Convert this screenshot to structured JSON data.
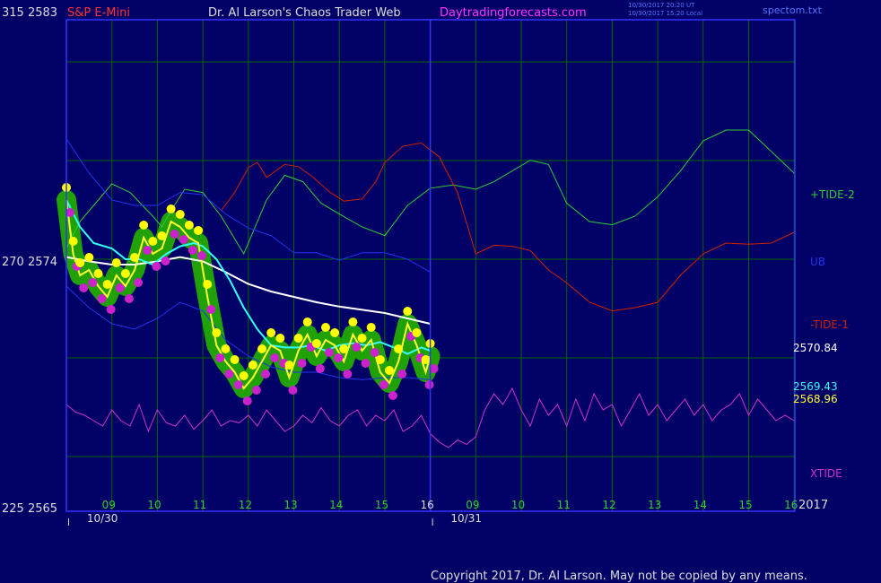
{
  "header": {
    "left_axis_top": "315  2583",
    "left_axis_mid": "270  2574",
    "left_axis_bottom": "225  2565",
    "symbol": "S&P E-Mini",
    "site_title": "Dr. Al Larson's Chaos Trader Web",
    "site_url": "Daytradingforecasts.com",
    "timestamp_1": "10/30/2017 20:20 UT",
    "timestamp_2": "10/30/2017 15:20 Local",
    "filename": "spectom.txt"
  },
  "footer": {
    "copyright": "Copyright 2017, Dr. Al Larson. May not be copied by any means.",
    "year": "2017"
  },
  "colors": {
    "background": "#000066",
    "axis": "#3333ff",
    "grid": "#006600",
    "tide_plus": "#33cc33",
    "tide_minus": "#cc2200",
    "ub": "#2233ee",
    "xtide": "#cc33cc",
    "ema_fast": "#ffff33",
    "ema_slow": "#33ffff",
    "avg": "#ffffff",
    "dots_up": "#ffff00",
    "dots_down": "#cc22cc",
    "glow": "#22aa00"
  },
  "chart_data": {
    "type": "line",
    "title": "S&P E-Mini",
    "y_left_prices": [
      2583,
      2574,
      2565
    ],
    "y_left_cycles": [
      315,
      270,
      225
    ],
    "x_axis": {
      "hour_ticks": [
        "09",
        "10",
        "11",
        "12",
        "13",
        "14",
        "15",
        "16",
        "09",
        "10",
        "11",
        "12",
        "13",
        "14",
        "15",
        "16"
      ],
      "day_labels": [
        "10/30",
        "10/31"
      ]
    },
    "right_labels": [
      {
        "text": "+TIDE-2",
        "key": "tide_plus"
      },
      {
        "text": "UB",
        "key": "ub"
      },
      {
        "text": "-TIDE-1",
        "key": "tide_minus"
      },
      {
        "text": "2570.84",
        "key": "avg"
      },
      {
        "text": "2569.43",
        "key": "ema_slow"
      },
      {
        "text": "2568.96",
        "key": "ema_fast"
      },
      {
        "text": "XTIDE",
        "key": "xtide"
      }
    ],
    "series": [
      {
        "name": "+TIDE-2",
        "color_key": "tide_plus",
        "x": [
          0,
          0.3,
          0.7,
          1.0,
          1.4,
          1.9,
          2.1,
          2.3,
          2.6,
          3.0,
          3.4,
          3.9,
          4.1,
          4.4,
          4.8,
          5.2,
          5.6,
          6.0,
          6.5,
          7.0,
          7.5,
          8.0,
          8.5,
          9.0,
          9.4,
          9.8,
          10.2,
          10.6,
          11.0,
          11.5,
          12.0,
          12.5,
          13.0,
          13.5,
          14.0,
          14.5,
          15.0,
          15.5,
          16.0
        ],
        "values": [
          0.1,
          0.35,
          0.55,
          0.7,
          0.62,
          0.4,
          0.3,
          0.45,
          0.65,
          0.62,
          0.4,
          0.05,
          0.25,
          0.55,
          0.78,
          0.72,
          0.52,
          0.42,
          0.3,
          0.22,
          0.5,
          0.66,
          0.69,
          0.65,
          0.72,
          0.82,
          0.92,
          0.88,
          0.52,
          0.35,
          0.32,
          0.4,
          0.58,
          0.82,
          1.1,
          1.2,
          1.2,
          1.0,
          0.8
        ]
      },
      {
        "name": "-TIDE-1",
        "color_key": "tide_minus",
        "x": [
          3.4,
          3.7,
          4.0,
          4.2,
          4.4,
          4.8,
          5.1,
          5.4,
          5.8,
          6.1,
          6.5,
          6.8,
          7.0,
          7.4,
          7.8,
          8.2,
          8.6,
          9.0,
          9.4,
          9.8,
          10.2,
          10.6,
          11.0,
          11.5,
          12.0,
          12.5,
          13.0,
          13.5,
          14.0,
          14.5,
          15.0,
          15.5,
          16.0
        ],
        "values": [
          0.45,
          0.62,
          0.85,
          0.9,
          0.76,
          0.88,
          0.86,
          0.77,
          0.62,
          0.54,
          0.56,
          0.72,
          0.9,
          1.05,
          1.08,
          0.95,
          0.62,
          0.05,
          0.13,
          0.12,
          0.08,
          -0.1,
          -0.22,
          -0.4,
          -0.48,
          -0.45,
          -0.4,
          -0.15,
          0.05,
          0.15,
          0.14,
          0.15,
          0.25
        ]
      },
      {
        "name": "UB",
        "color_key": "ub",
        "x": [
          0,
          0.5,
          1.0,
          1.5,
          2.0,
          2.5,
          3.0,
          3.5,
          4.0,
          4.5,
          5.0,
          5.5,
          6.0,
          6.5,
          7.0,
          7.5,
          8.0
        ],
        "values": [
          1.12,
          0.8,
          0.55,
          0.5,
          0.5,
          0.62,
          0.6,
          0.42,
          0.29,
          0.22,
          0.06,
          0.06,
          -0.01,
          0.06,
          0.06,
          0.0,
          -0.12
        ]
      },
      {
        "name": "LB",
        "color_key": "ub",
        "x": [
          0,
          0.5,
          1.0,
          1.5,
          2.0,
          2.5,
          3.0,
          3.5,
          4.0,
          4.5,
          5.0,
          5.5,
          6.0,
          6.5,
          7.0,
          7.5,
          8.0
        ],
        "values": [
          -0.25,
          -0.45,
          -0.6,
          -0.65,
          -0.55,
          -0.4,
          -0.48,
          -0.75,
          -0.9,
          -1.0,
          -1.05,
          -1.05,
          -1.1,
          -1.12,
          -1.1,
          -1.1,
          -1.12
        ]
      },
      {
        "name": "2570.84",
        "color_key": "avg",
        "x": [
          0,
          0.5,
          1.0,
          1.5,
          2.0,
          2.5,
          3.0,
          3.5,
          4.0,
          4.5,
          5.0,
          5.5,
          6.0,
          6.5,
          7.0,
          7.5,
          8.0
        ],
        "values": [
          0.02,
          -0.02,
          -0.05,
          -0.05,
          -0.02,
          0.02,
          -0.02,
          -0.12,
          -0.23,
          -0.3,
          -0.35,
          -0.4,
          -0.44,
          -0.47,
          -0.5,
          -0.55,
          -0.6
        ]
      },
      {
        "name": "2569.43",
        "color_key": "ema_slow",
        "x": [
          0,
          0.3,
          0.6,
          1.0,
          1.3,
          1.6,
          1.9,
          2.2,
          2.5,
          2.8,
          3.0,
          3.3,
          3.6,
          3.9,
          4.2,
          4.5,
          4.8,
          5.1,
          5.4,
          5.7,
          6.0,
          6.3,
          6.6,
          6.9,
          7.2,
          7.5,
          7.8,
          8.0
        ],
        "values": [
          0.55,
          0.3,
          0.15,
          0.1,
          0.0,
          0.0,
          -0.05,
          0.05,
          0.12,
          0.15,
          0.12,
          0.0,
          -0.2,
          -0.45,
          -0.65,
          -0.8,
          -0.82,
          -0.82,
          -0.8,
          -0.85,
          -0.8,
          -0.78,
          -0.8,
          -0.77,
          -0.82,
          -0.88,
          -0.82,
          -0.85
        ]
      },
      {
        "name": "2568.96",
        "color_key": "ema_fast",
        "x": [
          0,
          0.15,
          0.3,
          0.5,
          0.7,
          0.9,
          1.1,
          1.3,
          1.5,
          1.7,
          1.9,
          2.1,
          2.3,
          2.5,
          2.7,
          2.9,
          3.1,
          3.3,
          3.5,
          3.7,
          3.9,
          4.1,
          4.3,
          4.5,
          4.7,
          4.9,
          5.1,
          5.3,
          5.5,
          5.7,
          5.9,
          6.1,
          6.3,
          6.5,
          6.7,
          6.9,
          7.1,
          7.3,
          7.5,
          7.7,
          7.9,
          8.0
        ],
        "values": [
          0.55,
          0.05,
          -0.15,
          -0.1,
          -0.25,
          -0.35,
          -0.15,
          -0.25,
          -0.1,
          0.2,
          0.05,
          0.1,
          0.35,
          0.3,
          0.2,
          0.15,
          -0.35,
          -0.8,
          -0.95,
          -1.05,
          -1.2,
          -1.1,
          -0.95,
          -0.8,
          -0.85,
          -1.1,
          -0.85,
          -0.7,
          -0.9,
          -0.75,
          -0.8,
          -0.95,
          -0.7,
          -0.85,
          -0.75,
          -1.05,
          -1.15,
          -0.95,
          -0.6,
          -0.8,
          -1.05,
          -0.9
        ]
      },
      {
        "name": "XTIDE",
        "color_key": "xtide",
        "x": [
          0,
          0.2,
          0.4,
          0.6,
          0.8,
          1.0,
          1.2,
          1.4,
          1.6,
          1.8,
          2.0,
          2.2,
          2.4,
          2.6,
          2.8,
          3.0,
          3.2,
          3.4,
          3.6,
          3.8,
          4.0,
          4.2,
          4.4,
          4.6,
          4.8,
          5.0,
          5.2,
          5.4,
          5.6,
          5.8,
          6.0,
          6.2,
          6.4,
          6.6,
          6.8,
          7.0,
          7.2,
          7.4,
          7.6,
          7.8,
          8.0,
          8.2,
          8.4,
          8.6,
          8.8,
          9.0,
          9.2,
          9.4,
          9.6,
          9.8,
          10.0,
          10.2,
          10.4,
          10.6,
          10.8,
          11.0,
          11.2,
          11.4,
          11.6,
          11.8,
          12.0,
          12.2,
          12.4,
          12.6,
          12.8,
          13.0,
          13.2,
          13.4,
          13.6,
          13.8,
          14.0,
          14.2,
          14.4,
          14.6,
          14.8,
          15.0,
          15.2,
          15.4,
          15.6,
          15.8,
          16.0
        ],
        "values": [
          -1.35,
          -1.42,
          -1.45,
          -1.5,
          -1.55,
          -1.4,
          -1.5,
          -1.55,
          -1.35,
          -1.6,
          -1.4,
          -1.52,
          -1.55,
          -1.45,
          -1.58,
          -1.5,
          -1.4,
          -1.55,
          -1.5,
          -1.52,
          -1.45,
          -1.55,
          -1.4,
          -1.5,
          -1.6,
          -1.55,
          -1.45,
          -1.52,
          -1.38,
          -1.5,
          -1.55,
          -1.45,
          -1.4,
          -1.55,
          -1.45,
          -1.5,
          -1.4,
          -1.6,
          -1.55,
          -1.45,
          -1.62,
          -1.7,
          -1.75,
          -1.68,
          -1.72,
          -1.65,
          -1.4,
          -1.25,
          -1.35,
          -1.2,
          -1.4,
          -1.55,
          -1.3,
          -1.45,
          -1.35,
          -1.55,
          -1.3,
          -1.5,
          -1.25,
          -1.4,
          -1.35,
          -1.55,
          -1.4,
          -1.25,
          -1.45,
          -1.35,
          -1.5,
          -1.4,
          -1.3,
          -1.45,
          -1.35,
          -1.5,
          -1.4,
          -1.35,
          -1.25,
          -1.45,
          -1.3,
          -1.4,
          -1.5,
          -1.45,
          -1.5
        ]
      }
    ]
  }
}
